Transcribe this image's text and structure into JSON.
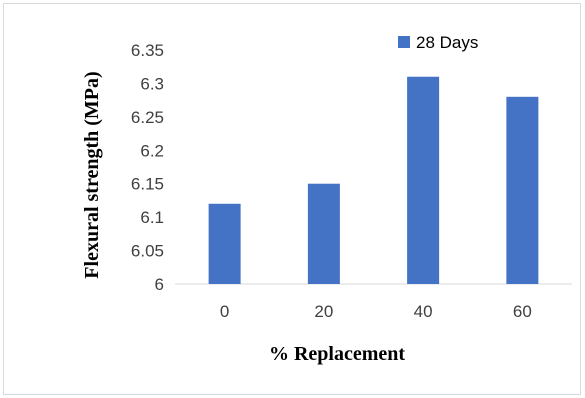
{
  "chart_data": {
    "type": "bar",
    "categories": [
      "0",
      "20",
      "40",
      "60"
    ],
    "series": [
      {
        "name": "28 Days",
        "values": [
          6.12,
          6.15,
          6.31,
          6.28
        ]
      }
    ],
    "xlabel": "% Replacement",
    "ylabel": "Flexural strength (MPa)",
    "ylim": [
      6,
      6.35
    ],
    "yticks": [
      "6",
      "6.05",
      "6.1",
      "6.15",
      "6.2",
      "6.25",
      "6.3",
      "6.35"
    ],
    "yticks_values": [
      6,
      6.05,
      6.1,
      6.15,
      6.2,
      6.25,
      6.3,
      6.35
    ],
    "grid": false,
    "legend_position": "top-right",
    "bar_color": "#4472c4"
  }
}
